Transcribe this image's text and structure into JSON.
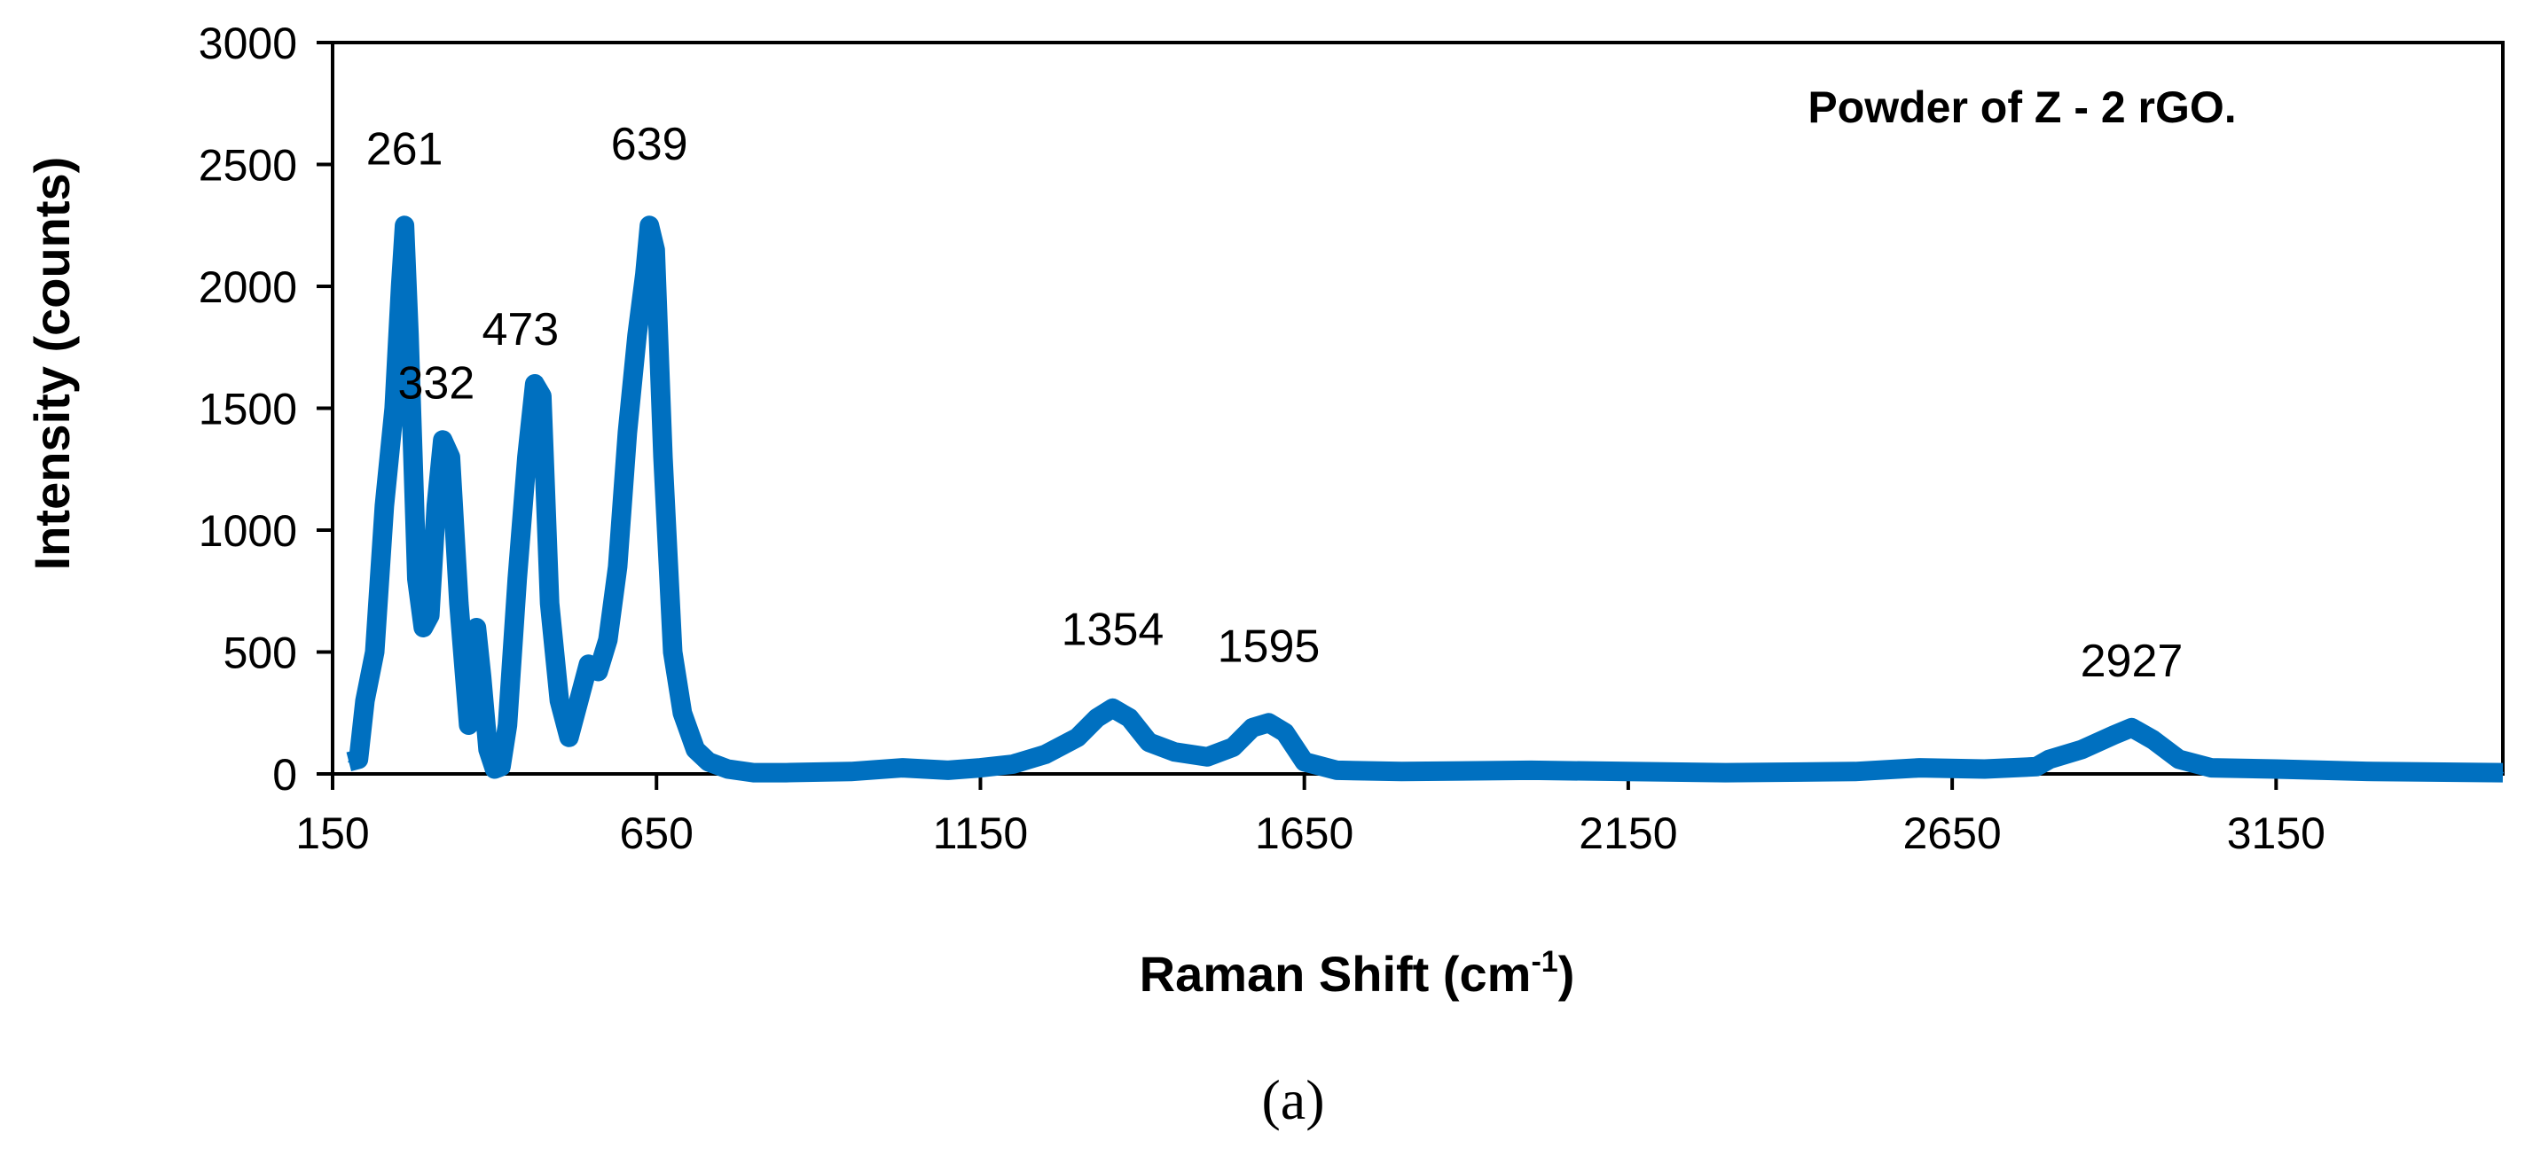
{
  "chart_data": {
    "type": "line",
    "title": "Powder of Z - 2 rGO.",
    "xlabel_main": "Raman Shift (cm",
    "xlabel_sup": "-1",
    "xlabel_end": ")",
    "ylabel": "Intensity (counts)",
    "xlim": [
      150,
      3500
    ],
    "ylim": [
      0,
      3000
    ],
    "xticks": [
      150,
      650,
      1150,
      1650,
      2150,
      2650,
      3150
    ],
    "yticks": [
      0,
      500,
      1000,
      1500,
      2000,
      2500,
      3000
    ],
    "grid": false,
    "legend": "none",
    "series_color": "#0070C0",
    "peak_labels": [
      {
        "text": "261",
        "x": 261,
        "y": 2500
      },
      {
        "text": "332",
        "x": 310,
        "y": 1540
      },
      {
        "text": "473",
        "x": 440,
        "y": 1760
      },
      {
        "text": "639",
        "x": 639,
        "y": 2520
      },
      {
        "text": "1354",
        "x": 1354,
        "y": 530
      },
      {
        "text": "1595",
        "x": 1595,
        "y": 460
      },
      {
        "text": "2927",
        "x": 2927,
        "y": 400
      }
    ],
    "series": [
      {
        "x": [
          175,
          190,
          200,
          215,
          230,
          245,
          255,
          261,
          268,
          280,
          290,
          300,
          310,
          320,
          332,
          345,
          360,
          372,
          380,
          390,
          400,
          410,
          420,
          435,
          450,
          462,
          473,
          485,
          500,
          515,
          530,
          545,
          560,
          575,
          590,
          605,
          620,
          632,
          639,
          648,
          660,
          675,
          690,
          710,
          730,
          760,
          800,
          850,
          950,
          1030,
          1100,
          1150,
          1200,
          1250,
          1300,
          1330,
          1354,
          1380,
          1410,
          1450,
          1500,
          1540,
          1570,
          1595,
          1620,
          1650,
          1700,
          1800,
          2000,
          2150,
          2300,
          2500,
          2600,
          2700,
          2780,
          2800,
          2850,
          2900,
          2927,
          2960,
          3000,
          3050,
          3150,
          3300,
          3500
        ],
        "y": [
          50,
          60,
          300,
          500,
          1100,
          1500,
          2000,
          2250,
          1800,
          800,
          600,
          650,
          1100,
          1370,
          1300,
          700,
          200,
          600,
          400,
          100,
          20,
          30,
          200,
          800,
          1300,
          1600,
          1550,
          700,
          300,
          150,
          300,
          450,
          420,
          550,
          850,
          1400,
          1800,
          2050,
          2250,
          2150,
          1300,
          500,
          250,
          100,
          50,
          20,
          5,
          5,
          10,
          25,
          15,
          25,
          40,
          80,
          150,
          230,
          270,
          230,
          130,
          90,
          70,
          110,
          190,
          210,
          170,
          50,
          15,
          10,
          15,
          10,
          5,
          10,
          25,
          20,
          30,
          60,
          100,
          160,
          190,
          140,
          60,
          25,
          20,
          10,
          5
        ]
      }
    ]
  },
  "figure": {
    "sub_label": "(a)"
  }
}
